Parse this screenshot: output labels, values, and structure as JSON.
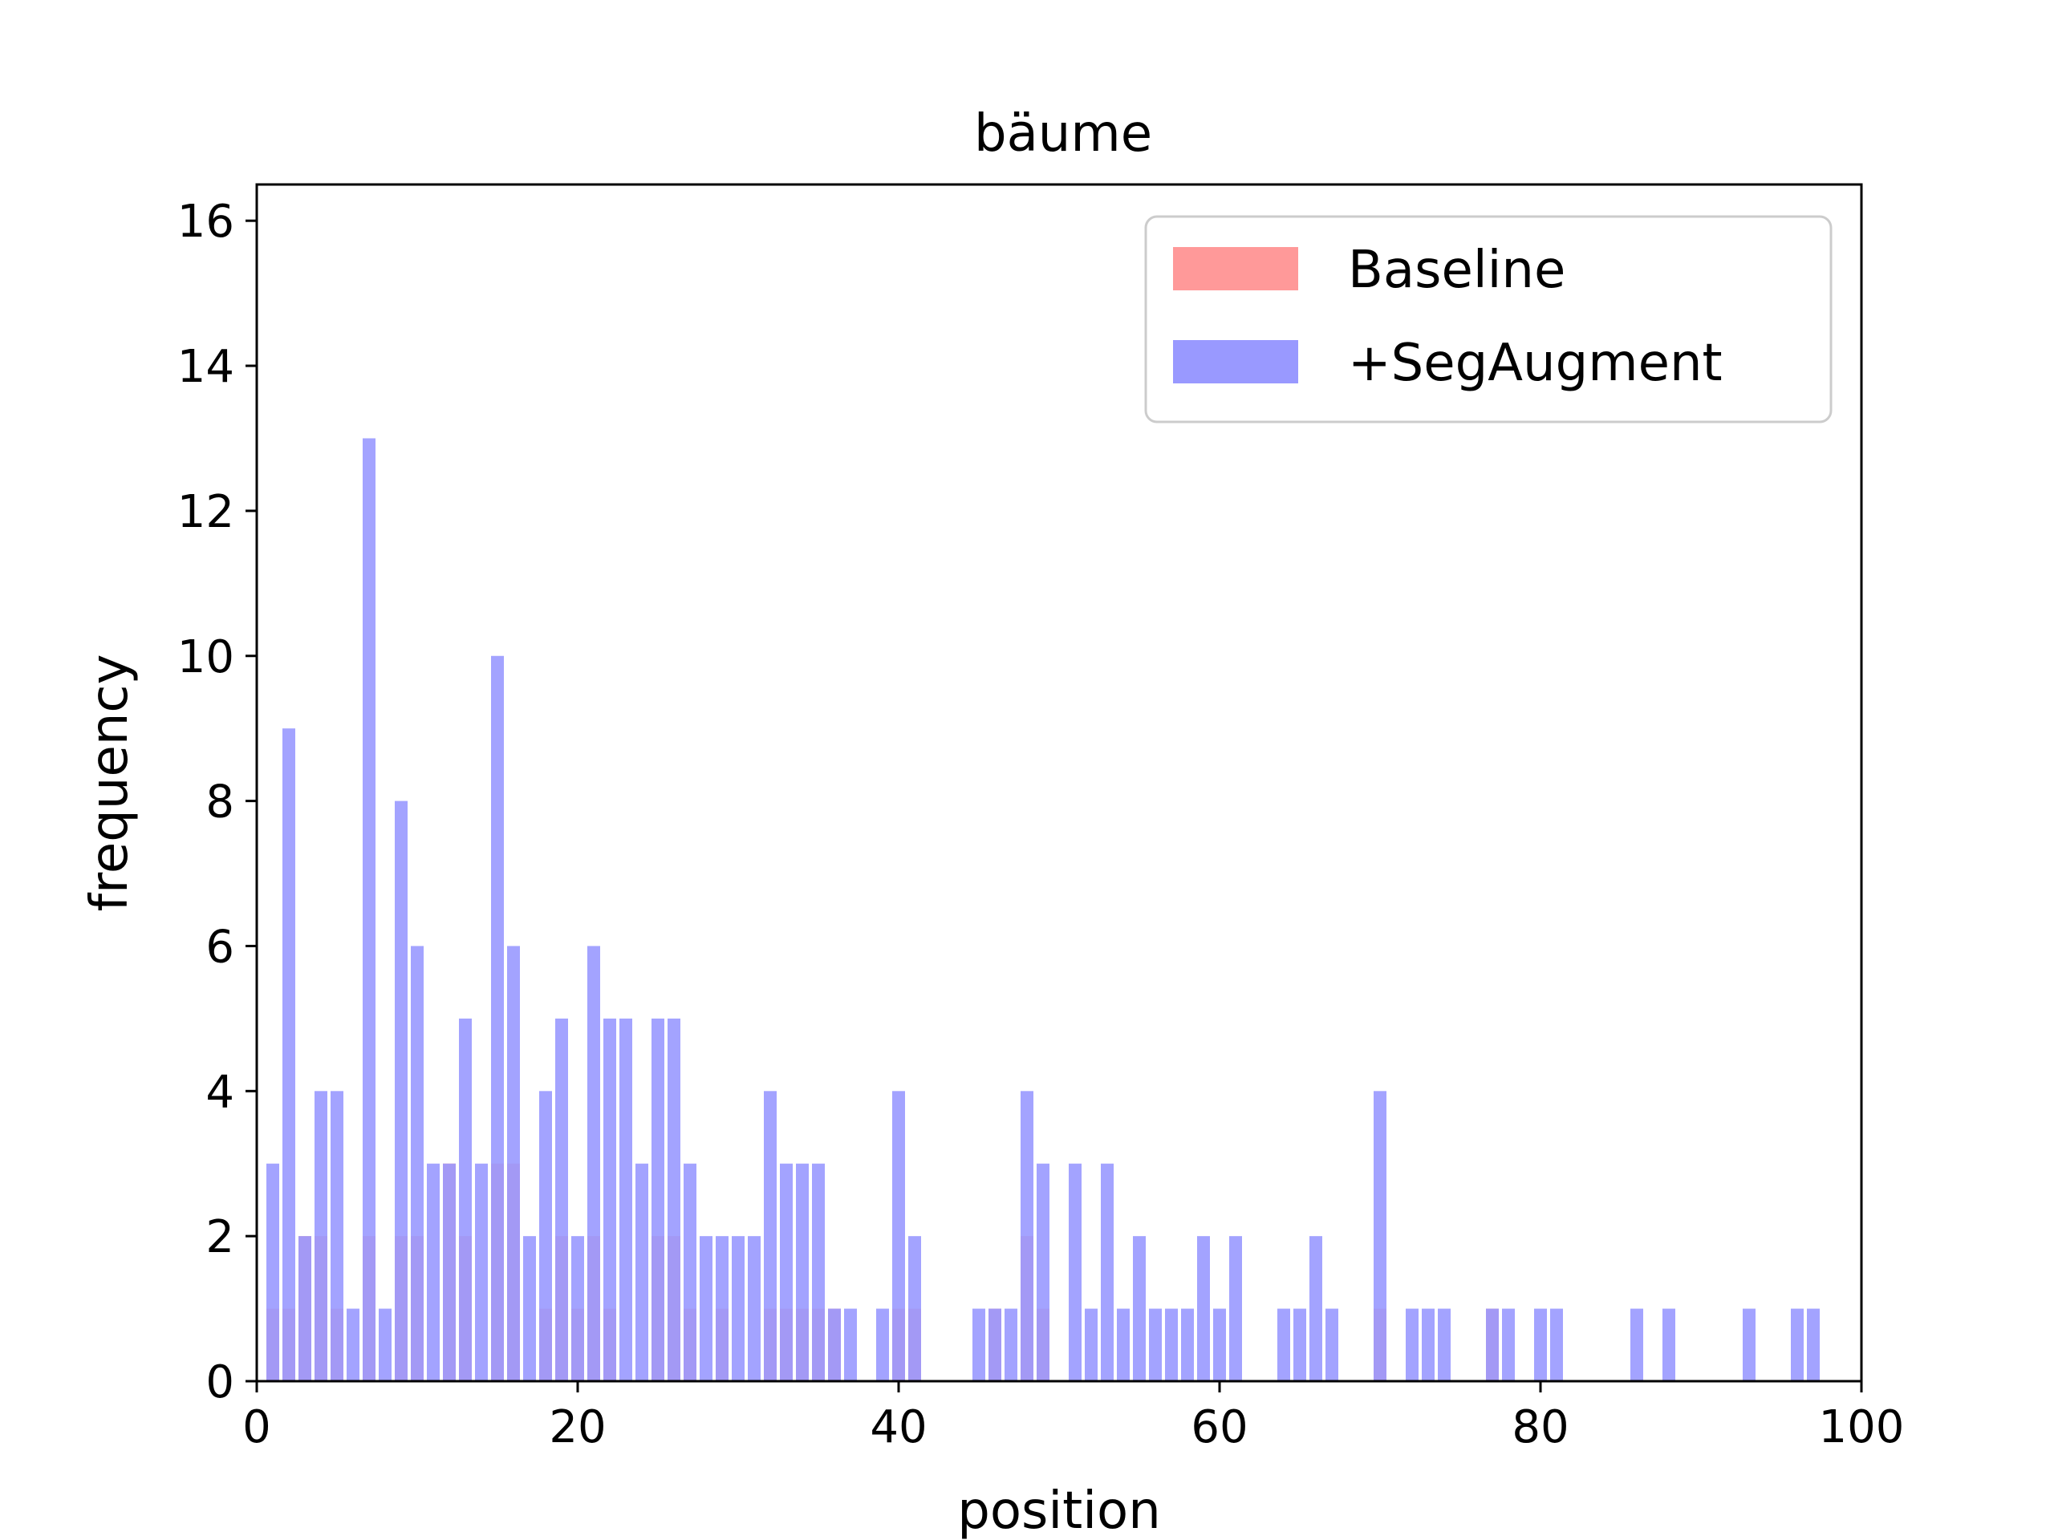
{
  "chart_data": {
    "type": "bar",
    "title": "bäume",
    "xlabel": "position",
    "ylabel": "frequency",
    "xlim": [
      0,
      100
    ],
    "ylim": [
      0,
      16.5
    ],
    "xticks": [
      0,
      20,
      40,
      60,
      80,
      100
    ],
    "yticks": [
      0,
      2,
      4,
      6,
      8,
      10,
      12,
      14,
      16
    ],
    "grid": false,
    "legend_position": "top-right",
    "series": [
      {
        "name": "Baseline",
        "color": "#ff9999",
        "points": [
          [
            1,
            1
          ],
          [
            2,
            1
          ],
          [
            3,
            2
          ],
          [
            4,
            2
          ],
          [
            5,
            1
          ],
          [
            7,
            2
          ],
          [
            9,
            2
          ],
          [
            10,
            2
          ],
          [
            12,
            3
          ],
          [
            13,
            2
          ],
          [
            15,
            3
          ],
          [
            16,
            3
          ],
          [
            18,
            1
          ],
          [
            19,
            2
          ],
          [
            20,
            1
          ],
          [
            21,
            2
          ],
          [
            22,
            1
          ],
          [
            25,
            2
          ],
          [
            26,
            2
          ],
          [
            27,
            1
          ],
          [
            29,
            1
          ],
          [
            32,
            1
          ],
          [
            33,
            1
          ],
          [
            34,
            1
          ],
          [
            35,
            1
          ],
          [
            36,
            1
          ],
          [
            40,
            1
          ],
          [
            41,
            1
          ],
          [
            46,
            1
          ],
          [
            48,
            2
          ],
          [
            49,
            1
          ],
          [
            70,
            1
          ],
          [
            77,
            1
          ]
        ]
      },
      {
        "name": "+SegAugment",
        "color": "#9999ff",
        "points": [
          [
            1,
            3
          ],
          [
            2,
            9
          ],
          [
            3,
            2
          ],
          [
            4,
            4
          ],
          [
            5,
            4
          ],
          [
            6,
            1
          ],
          [
            7,
            13
          ],
          [
            8,
            1
          ],
          [
            9,
            8
          ],
          [
            10,
            6
          ],
          [
            11,
            3
          ],
          [
            12,
            3
          ],
          [
            13,
            5
          ],
          [
            14,
            3
          ],
          [
            15,
            10
          ],
          [
            16,
            6
          ],
          [
            17,
            2
          ],
          [
            18,
            4
          ],
          [
            19,
            5
          ],
          [
            20,
            2
          ],
          [
            21,
            6
          ],
          [
            22,
            5
          ],
          [
            23,
            5
          ],
          [
            24,
            3
          ],
          [
            25,
            5
          ],
          [
            26,
            5
          ],
          [
            27,
            3
          ],
          [
            28,
            2
          ],
          [
            29,
            2
          ],
          [
            30,
            2
          ],
          [
            31,
            2
          ],
          [
            32,
            4
          ],
          [
            33,
            3
          ],
          [
            34,
            3
          ],
          [
            35,
            3
          ],
          [
            36,
            1
          ],
          [
            37,
            1
          ],
          [
            39,
            1
          ],
          [
            40,
            4
          ],
          [
            41,
            2
          ],
          [
            45,
            1
          ],
          [
            46,
            1
          ],
          [
            47,
            1
          ],
          [
            48,
            4
          ],
          [
            49,
            3
          ],
          [
            51,
            3
          ],
          [
            52,
            1
          ],
          [
            53,
            3
          ],
          [
            54,
            1
          ],
          [
            55,
            2
          ],
          [
            56,
            1
          ],
          [
            57,
            1
          ],
          [
            58,
            1
          ],
          [
            59,
            2
          ],
          [
            60,
            1
          ],
          [
            61,
            2
          ],
          [
            64,
            1
          ],
          [
            65,
            1
          ],
          [
            66,
            2
          ],
          [
            67,
            1
          ],
          [
            70,
            4
          ],
          [
            72,
            1
          ],
          [
            73,
            1
          ],
          [
            74,
            1
          ],
          [
            77,
            1
          ],
          [
            78,
            1
          ],
          [
            80,
            1
          ],
          [
            81,
            1
          ],
          [
            86,
            1
          ],
          [
            88,
            1
          ],
          [
            93,
            1
          ],
          [
            96,
            1
          ],
          [
            97,
            1
          ]
        ]
      }
    ]
  }
}
